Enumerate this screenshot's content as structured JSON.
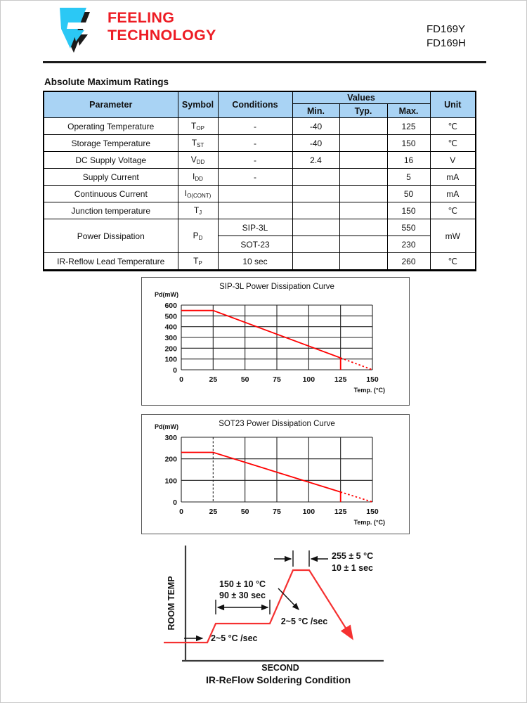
{
  "header": {
    "company_line1": "FEELING",
    "company_line2": "TECHNOLOGY",
    "part_number_1": "FD169Y",
    "part_number_2": "FD169H",
    "brand_red": "#ED1C24",
    "logo_cyan": "#2BC8F5"
  },
  "section_title": "Absolute Maximum Ratings",
  "table": {
    "headers": {
      "parameter": "Parameter",
      "symbol": "Symbol",
      "conditions": "Conditions",
      "values": "Values",
      "min": "Min.",
      "typ": "Typ.",
      "max": "Max.",
      "unit": "Unit"
    },
    "rows": [
      {
        "parameter": "Operating Temperature",
        "sym": "T",
        "sub": "OP",
        "conditions": "-",
        "min": "-40",
        "typ": "",
        "max": "125",
        "unit": "℃"
      },
      {
        "parameter": "Storage Temperature",
        "sym": "T",
        "sub": "ST",
        "conditions": "-",
        "min": "-40",
        "typ": "",
        "max": "150",
        "unit": "℃"
      },
      {
        "parameter": "DC Supply Voltage",
        "sym": "V",
        "sub": "DD",
        "conditions": "-",
        "min": "2.4",
        "typ": "",
        "max": "16",
        "unit": "V"
      },
      {
        "parameter": "Supply Current",
        "sym": "I",
        "sub": "DD",
        "conditions": "-",
        "min": "",
        "typ": "",
        "max": "5",
        "unit": "mA"
      },
      {
        "parameter": "Continuous Current",
        "sym": "I",
        "sub": "O(CONT)",
        "conditions": "",
        "min": "",
        "typ": "",
        "max": "50",
        "unit": "mA"
      },
      {
        "parameter": "Junction temperature",
        "sym": "T",
        "sub": "J",
        "conditions": "",
        "min": "",
        "typ": "",
        "max": "150",
        "unit": "℃"
      },
      {
        "parameter": "Power Dissipation",
        "sym": "P",
        "sub": "D",
        "conditions": "SIP-3L",
        "min": "",
        "typ": "",
        "max": "550",
        "unit": "mW"
      },
      {
        "conditions": "SOT-23",
        "min": "",
        "typ": "",
        "max": "230"
      },
      {
        "parameter": "IR-Reflow Lead Temperature",
        "sym": "T",
        "sub": "P",
        "conditions": "10 sec",
        "min": "",
        "typ": "",
        "max": "260",
        "unit": "℃"
      }
    ]
  },
  "chart_data": [
    {
      "type": "line",
      "title": "SIP-3L Power Dissipation Curve",
      "ylabel": "Pd(mW)",
      "xlabel": "Temp. (°C)",
      "xlim": [
        0,
        150
      ],
      "ylim": [
        0,
        600
      ],
      "xticks": [
        0,
        25,
        50,
        75,
        100,
        125,
        150
      ],
      "yticks": [
        0,
        100,
        200,
        300,
        400,
        500,
        600
      ],
      "dashed_xticks": [],
      "grid": "on",
      "color": "#FF0000",
      "series": [
        {
          "name": "derating-solid",
          "style": "solid",
          "points": [
            [
              0,
              550
            ],
            [
              25,
              550
            ],
            [
              125,
              110
            ]
          ]
        },
        {
          "name": "drop-at-125",
          "style": "solid",
          "points": [
            [
              125,
              110
            ],
            [
              125,
              0
            ]
          ]
        },
        {
          "name": "derating-dashed",
          "style": "dashed",
          "points": [
            [
              125,
              110
            ],
            [
              150,
              0
            ]
          ]
        }
      ]
    },
    {
      "type": "line",
      "title": "SOT23 Power Dissipation Curve",
      "ylabel": "Pd(mW)",
      "xlabel": "Temp. (°C)",
      "xlim": [
        0,
        150
      ],
      "ylim": [
        0,
        300
      ],
      "xticks": [
        0,
        25,
        50,
        75,
        100,
        125,
        150
      ],
      "yticks": [
        0,
        100,
        200,
        300
      ],
      "dashed_xticks": [
        25
      ],
      "grid": "on",
      "color": "#FF0000",
      "series": [
        {
          "name": "derating-solid",
          "style": "solid",
          "points": [
            [
              0,
              230
            ],
            [
              25,
              230
            ],
            [
              125,
              46
            ]
          ]
        },
        {
          "name": "drop-at-125",
          "style": "solid",
          "points": [
            [
              125,
              46
            ],
            [
              125,
              0
            ]
          ]
        },
        {
          "name": "derating-dashed",
          "style": "dashed",
          "points": [
            [
              125,
              46
            ],
            [
              150,
              0
            ]
          ]
        }
      ]
    },
    {
      "type": "profile",
      "title": "IR-ReFlow Soldering Condition",
      "xlabel": "SECOND",
      "ylabel": "ROOM TEMP",
      "color": "#F53131",
      "annotations": {
        "peak_temp": "255 ± 5 °C",
        "peak_time": "10 ± 1 sec",
        "preheat_temp": "150 ± 10 °C",
        "preheat_time": "90 ± 30 sec",
        "ramp_rate": "2~5 °C /sec",
        "initial_ramp_rate": "2~5 °C /sec"
      }
    }
  ]
}
